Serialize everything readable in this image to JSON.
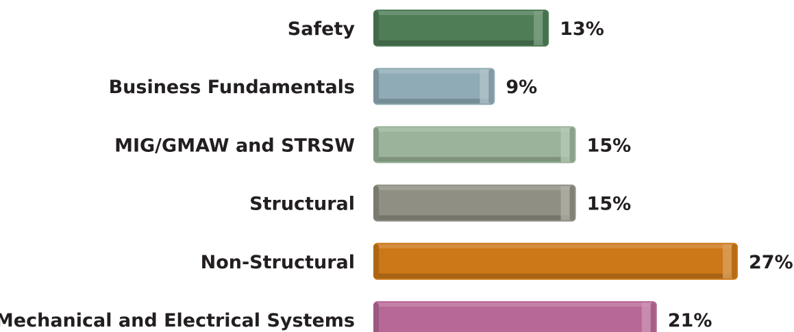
{
  "chart_data": {
    "type": "bar",
    "orientation": "horizontal",
    "categories": [
      "Safety",
      "Business Fundamentals",
      "MIG/GMAW and STRSW",
      "Structural",
      "Non-Structural",
      "Mechanical and Electrical Systems"
    ],
    "values": [
      13,
      9,
      15,
      15,
      27,
      21
    ],
    "value_labels": [
      "13%",
      "9%",
      "15%",
      "15%",
      "27%",
      "21%"
    ],
    "colors": [
      "#4e7d56",
      "#8fabb5",
      "#9ab39a",
      "#8f8f83",
      "#cc7818",
      "#b86896"
    ],
    "unit": "%",
    "title": "",
    "xlabel": "",
    "ylabel": "",
    "xlim": [
      0,
      27
    ],
    "grid": false,
    "legend": "none"
  }
}
